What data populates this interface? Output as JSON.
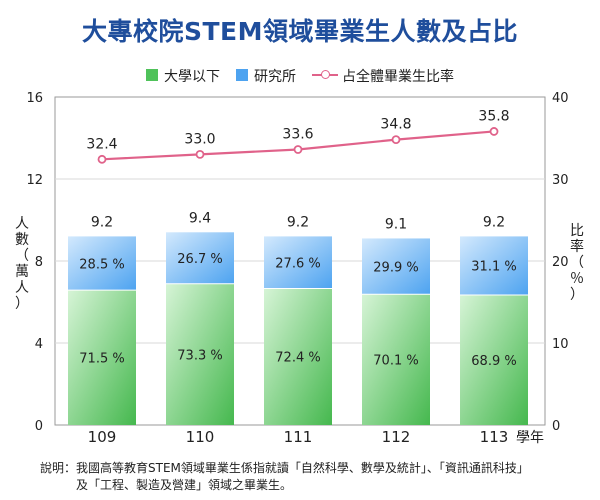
{
  "title": "大專校院STEM領域畢業生人數及占比",
  "legend": {
    "under_grad": "大學以下",
    "grad": "研究所",
    "ratio": "占全體畢業生比率"
  },
  "axes": {
    "left_label": [
      "人",
      "數",
      "（",
      "萬",
      "人",
      "）"
    ],
    "right_label": [
      "比",
      "率",
      "（",
      "％",
      "）"
    ],
    "year_suffix": "學年"
  },
  "note": {
    "line1": "說明：我國高等教育STEM領域畢業生係指就讀「自然科學、數學及統計」、「資訊通訊科技」",
    "line2": "及「工程、製造及營建」領域之畢業生。"
  },
  "colors": {
    "title": "#1f4e9c",
    "green_dark": "#45b84e",
    "green_light": "#d6f4d6",
    "blue_dark": "#4da3f0",
    "blue_light": "#d3e9fd",
    "line": "#e0628a",
    "grid": "#d8d8d8"
  },
  "chart_data": {
    "type": "bar",
    "stacked": true,
    "categories": [
      "109",
      "110",
      "111",
      "112",
      "113"
    ],
    "totals": [
      "9.2",
      "9.4",
      "9.2",
      "9.1",
      "9.2"
    ],
    "totals_values": [
      9.2,
      9.4,
      9.2,
      9.1,
      9.2
    ],
    "series": [
      {
        "name": "大學以下",
        "shares": [
          71.5,
          73.3,
          72.4,
          70.1,
          68.9
        ],
        "labels": [
          "71.5 %",
          "73.3 %",
          "72.4 %",
          "70.1 %",
          "68.9 %"
        ]
      },
      {
        "name": "研究所",
        "shares": [
          28.5,
          26.7,
          27.6,
          29.9,
          31.1
        ],
        "labels": [
          "28.5 %",
          "26.7 %",
          "27.6 %",
          "29.9 %",
          "31.1 %"
        ]
      }
    ],
    "line": {
      "name": "占全體畢業生比率",
      "values": [
        32.4,
        33.0,
        33.6,
        34.8,
        35.8
      ],
      "labels": [
        "32.4",
        "33.0",
        "33.6",
        "34.8",
        "35.8"
      ]
    },
    "y_left": {
      "min": 0,
      "max": 16,
      "ticks": [
        "0",
        "4",
        "8",
        "12",
        "16"
      ]
    },
    "y_right": {
      "min": 0,
      "max": 40,
      "ticks": [
        "0",
        "10",
        "20",
        "30",
        "40"
      ]
    },
    "grid": true,
    "legend_position": "top"
  }
}
